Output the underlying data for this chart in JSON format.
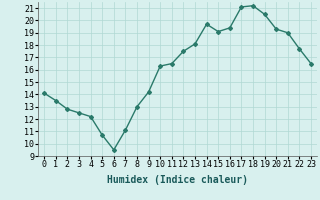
{
  "title": "",
  "xlabel": "Humidex (Indice chaleur)",
  "x": [
    0,
    1,
    2,
    3,
    4,
    5,
    6,
    7,
    8,
    9,
    10,
    11,
    12,
    13,
    14,
    15,
    16,
    17,
    18,
    19,
    20,
    21,
    22,
    23
  ],
  "y": [
    14.1,
    13.5,
    12.8,
    12.5,
    12.2,
    10.7,
    9.5,
    11.1,
    13.0,
    14.2,
    16.3,
    16.5,
    17.5,
    18.1,
    19.7,
    19.1,
    19.4,
    21.1,
    21.2,
    20.5,
    19.3,
    19.0,
    17.7,
    16.5
  ],
  "line_color": "#2a7a6a",
  "marker": "D",
  "marker_size": 2,
  "bg_color": "#d8f0ee",
  "grid_color": "#b0d8d4",
  "ylim": [
    9,
    21.5
  ],
  "yticks": [
    9,
    10,
    11,
    12,
    13,
    14,
    15,
    16,
    17,
    18,
    19,
    20,
    21
  ],
  "xticks": [
    0,
    1,
    2,
    3,
    4,
    5,
    6,
    7,
    8,
    9,
    10,
    11,
    12,
    13,
    14,
    15,
    16,
    17,
    18,
    19,
    20,
    21,
    22,
    23
  ],
  "label_fontsize": 7,
  "tick_fontsize": 6
}
